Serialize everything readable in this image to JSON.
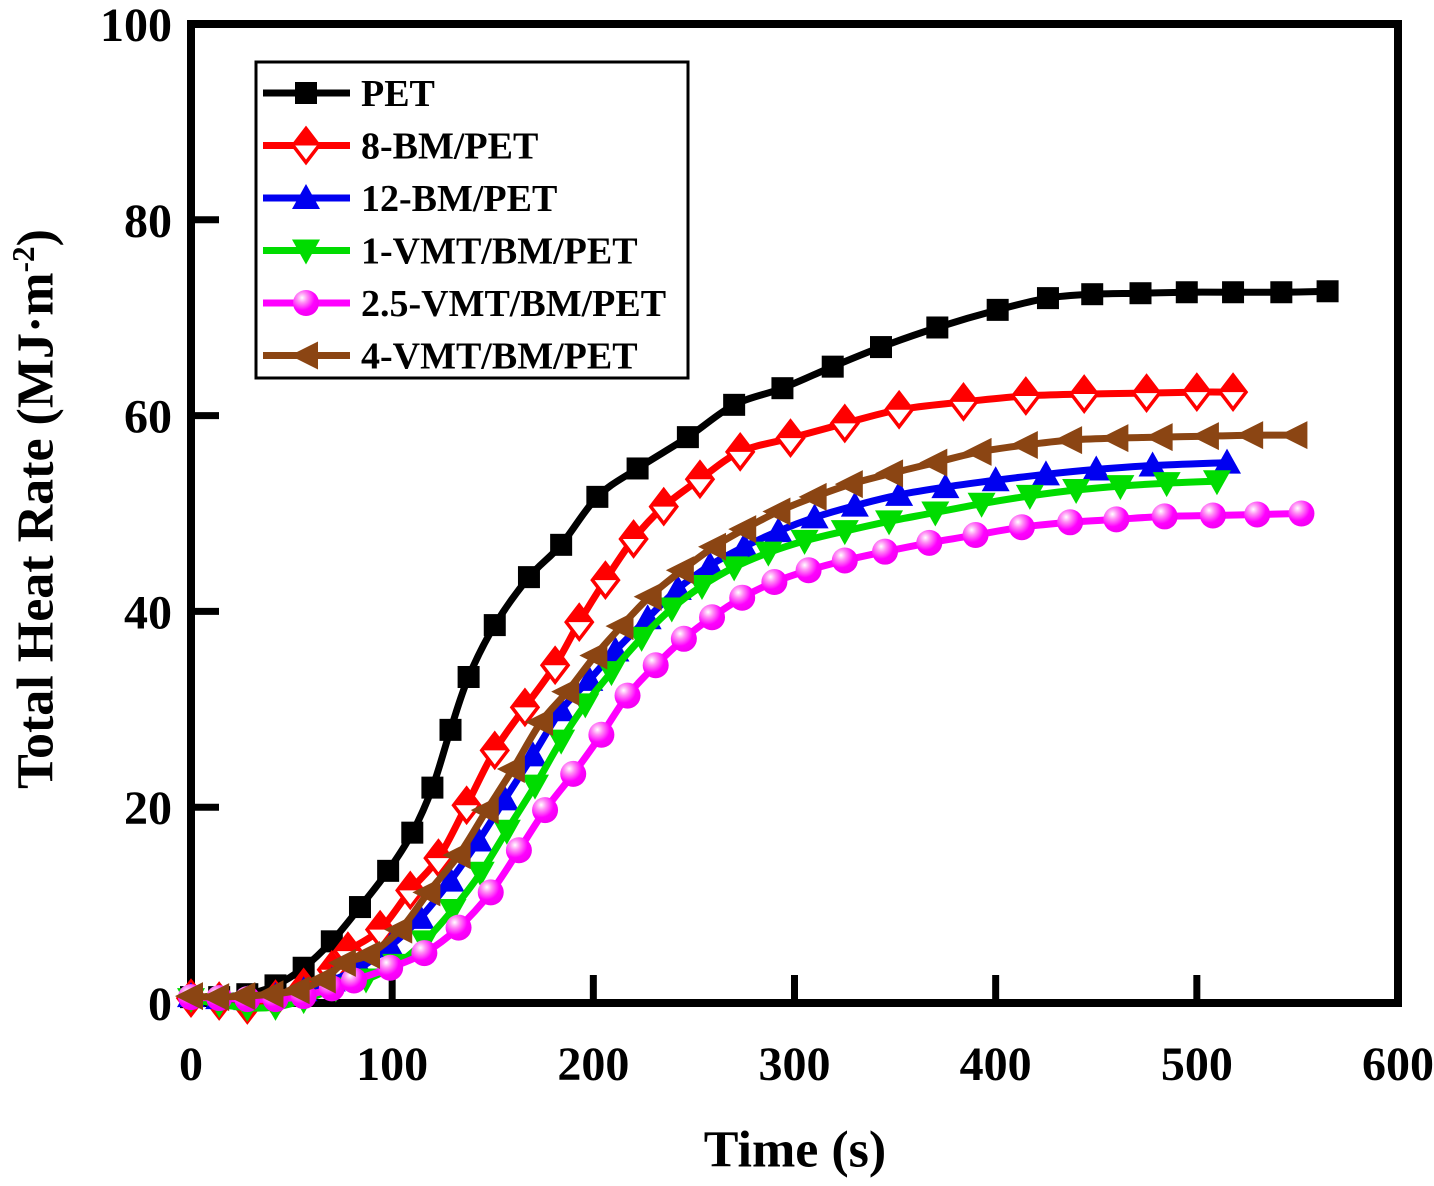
{
  "chart_data": {
    "type": "line",
    "title": "",
    "xlabel": "Time (s)",
    "ylabel_main": "Total Heat Rate (MJ·m",
    "ylabel_sup": "-2",
    "ylabel_close": ")",
    "xlim": [
      0,
      600
    ],
    "ylim": [
      0,
      100
    ],
    "x_ticks": [
      0,
      100,
      200,
      300,
      400,
      500,
      600
    ],
    "y_ticks": [
      0,
      20,
      40,
      60,
      80,
      100
    ],
    "grid": false,
    "legend": {
      "position": "top-left-inside",
      "border_color": "#000000",
      "background": "#ffffff"
    },
    "series": [
      {
        "name": "PET",
        "color": "#000000",
        "marker": "square",
        "points": [
          [
            0,
            0.6
          ],
          [
            14,
            0.6
          ],
          [
            28,
            0.9
          ],
          [
            42,
            1.8
          ],
          [
            56,
            3.6
          ],
          [
            70,
            6.3
          ],
          [
            84,
            9.8
          ],
          [
            98,
            13.5
          ],
          [
            110,
            17.4
          ],
          [
            120,
            22
          ],
          [
            129,
            27.9
          ],
          [
            138,
            33.3
          ],
          [
            151,
            38.6
          ],
          [
            168,
            43.5
          ],
          [
            184,
            46.8
          ],
          [
            202,
            51.7
          ],
          [
            222,
            54.6
          ],
          [
            247,
            57.8
          ],
          [
            270,
            61.1
          ],
          [
            294,
            62.8
          ],
          [
            319,
            65
          ],
          [
            343,
            67
          ],
          [
            371,
            69
          ],
          [
            401,
            70.8
          ],
          [
            426,
            72
          ],
          [
            448,
            72.4
          ],
          [
            472,
            72.5
          ],
          [
            495,
            72.6
          ],
          [
            518,
            72.6
          ],
          [
            542,
            72.6
          ],
          [
            565,
            72.7
          ]
        ]
      },
      {
        "name": "8-BM/PET",
        "color": "#FF0000",
        "marker": "diamond-half-up",
        "points": [
          [
            0,
            0.5
          ],
          [
            14,
            0.2
          ],
          [
            28,
            -0.2
          ],
          [
            42,
            0.4
          ],
          [
            56,
            1.6
          ],
          [
            70,
            3.4
          ],
          [
            78,
            5.3
          ],
          [
            94,
            7.5
          ],
          [
            109,
            11.5
          ],
          [
            123,
            14.8
          ],
          [
            137,
            20.2
          ],
          [
            151,
            25.8
          ],
          [
            166,
            30.2
          ],
          [
            181,
            34.5
          ],
          [
            193,
            38.9
          ],
          [
            206,
            43.2
          ],
          [
            220,
            47.4
          ],
          [
            235,
            50.7
          ],
          [
            253,
            53.5
          ],
          [
            273,
            56.3
          ],
          [
            298,
            57.7
          ],
          [
            325,
            59.2
          ],
          [
            352,
            60.6
          ],
          [
            384,
            61.4
          ],
          [
            415,
            62
          ],
          [
            444,
            62.2
          ],
          [
            475,
            62.3
          ],
          [
            500,
            62.4
          ],
          [
            518,
            62.4
          ]
        ]
      },
      {
        "name": "12-BM/PET",
        "color": "#0000F0",
        "marker": "triangle-up",
        "points": [
          [
            0,
            0.7
          ],
          [
            14,
            0.5
          ],
          [
            28,
            0.4
          ],
          [
            42,
            0.7
          ],
          [
            56,
            1.3
          ],
          [
            70,
            2.3
          ],
          [
            84,
            3.6
          ],
          [
            99,
            5.8
          ],
          [
            114,
            8.7
          ],
          [
            129,
            12.5
          ],
          [
            143,
            16.6
          ],
          [
            156,
            20.8
          ],
          [
            170,
            25.3
          ],
          [
            184,
            29.9
          ],
          [
            198,
            33
          ],
          [
            211,
            36
          ],
          [
            227,
            39.3
          ],
          [
            242,
            42.3
          ],
          [
            258,
            44.7
          ],
          [
            275,
            46.6
          ],
          [
            292,
            48.2
          ],
          [
            310,
            49.6
          ],
          [
            330,
            50.8
          ],
          [
            352,
            51.9
          ],
          [
            375,
            52.7
          ],
          [
            400,
            53.4
          ],
          [
            425,
            54
          ],
          [
            450,
            54.5
          ],
          [
            478,
            54.9
          ],
          [
            515,
            55.2
          ]
        ]
      },
      {
        "name": "1-VMT/BM/PET",
        "color": "#00DC00",
        "marker": "triangle-down",
        "points": [
          [
            0,
            0.4
          ],
          [
            14,
            -0.1
          ],
          [
            28,
            -0.5
          ],
          [
            42,
            -0.4
          ],
          [
            56,
            0.3
          ],
          [
            72,
            1.5
          ],
          [
            87,
            2.4
          ],
          [
            102,
            3.9
          ],
          [
            116,
            6.3
          ],
          [
            130,
            9.5
          ],
          [
            144,
            13.3
          ],
          [
            157,
            17.6
          ],
          [
            171,
            22.2
          ],
          [
            184,
            26.8
          ],
          [
            196,
            30.5
          ],
          [
            209,
            33.8
          ],
          [
            224,
            37.3
          ],
          [
            239,
            40.3
          ],
          [
            254,
            42.6
          ],
          [
            270,
            44.5
          ],
          [
            287,
            46
          ],
          [
            305,
            47.2
          ],
          [
            325,
            48.2
          ],
          [
            347,
            49.2
          ],
          [
            370,
            50.1
          ],
          [
            393,
            51
          ],
          [
            417,
            51.8
          ],
          [
            440,
            52.4
          ],
          [
            462,
            52.8
          ],
          [
            485,
            53.1
          ],
          [
            510,
            53.3
          ]
        ]
      },
      {
        "name": "2.5-VMT/BM/PET",
        "color": "#FF00FF",
        "marker": "sphere",
        "points": [
          [
            0,
            0.6
          ],
          [
            14,
            0.5
          ],
          [
            28,
            0.4
          ],
          [
            42,
            0.4
          ],
          [
            56,
            0.7
          ],
          [
            70,
            1.5
          ],
          [
            81,
            2.3
          ],
          [
            99,
            3.6
          ],
          [
            116,
            5.1
          ],
          [
            133,
            7.7
          ],
          [
            149,
            11.3
          ],
          [
            163,
            15.6
          ],
          [
            176,
            19.7
          ],
          [
            190,
            23.4
          ],
          [
            204,
            27.4
          ],
          [
            217,
            31.4
          ],
          [
            231,
            34.5
          ],
          [
            245,
            37.2
          ],
          [
            259,
            39.4
          ],
          [
            274,
            41.4
          ],
          [
            290,
            43
          ],
          [
            307,
            44.2
          ],
          [
            325,
            45.2
          ],
          [
            345,
            46.1
          ],
          [
            367,
            47
          ],
          [
            390,
            47.8
          ],
          [
            413,
            48.6
          ],
          [
            437,
            49.1
          ],
          [
            460,
            49.4
          ],
          [
            484,
            49.7
          ],
          [
            508,
            49.8
          ],
          [
            530,
            49.9
          ],
          [
            552,
            50
          ]
        ]
      },
      {
        "name": "4-VMT/BM/PET",
        "color": "#8B4513",
        "marker": "triangle-left",
        "points": [
          [
            0,
            0.7
          ],
          [
            13,
            0.6
          ],
          [
            26,
            0.7
          ],
          [
            40,
            0.9
          ],
          [
            53,
            1.3
          ],
          [
            66,
            2.4
          ],
          [
            76,
            4.1
          ],
          [
            88,
            4.9
          ],
          [
            104,
            7.5
          ],
          [
            118,
            11.3
          ],
          [
            133,
            15.1
          ],
          [
            147,
            19.7
          ],
          [
            160,
            23.9
          ],
          [
            174,
            28.7
          ],
          [
            187,
            31.8
          ],
          [
            201,
            35.5
          ],
          [
            214,
            38.5
          ],
          [
            228,
            41.5
          ],
          [
            244,
            44.2
          ],
          [
            260,
            46.6
          ],
          [
            275,
            48.4
          ],
          [
            292,
            50.2
          ],
          [
            310,
            51.7
          ],
          [
            328,
            53
          ],
          [
            348,
            54.1
          ],
          [
            370,
            55.2
          ],
          [
            392,
            56.3
          ],
          [
            415,
            57
          ],
          [
            437,
            57.5
          ],
          [
            460,
            57.7
          ],
          [
            482,
            57.8
          ],
          [
            505,
            57.9
          ],
          [
            527,
            58
          ],
          [
            549,
            58
          ]
        ]
      }
    ]
  }
}
